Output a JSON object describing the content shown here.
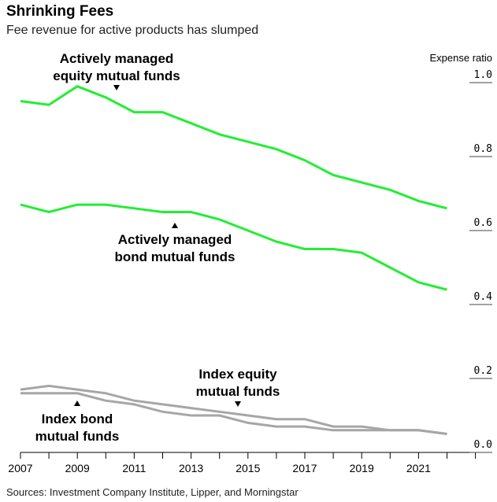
{
  "chart_data": {
    "type": "line",
    "title": "Shrinking Fees",
    "subtitle": "Fee revenue for active products has slumped",
    "ylabel": "Expense ratio",
    "ylim": [
      0,
      1.0
    ],
    "yticks": [
      "0.0",
      "0.2",
      "0.4",
      "0.6",
      "0.8",
      "1.0"
    ],
    "xlim": [
      2007,
      2023
    ],
    "xticks": [
      "2007",
      "2009",
      "2011",
      "2013",
      "2015",
      "2017",
      "2019",
      "2021"
    ],
    "x": [
      2007,
      2008,
      2009,
      2010,
      2011,
      2012,
      2013,
      2014,
      2015,
      2016,
      2017,
      2018,
      2019,
      2020,
      2021,
      2022
    ],
    "series": [
      {
        "name": "Actively managed equity mutual funds",
        "color": "#22ee33",
        "values": [
          0.95,
          0.94,
          0.99,
          0.96,
          0.92,
          0.92,
          0.89,
          0.86,
          0.84,
          0.82,
          0.79,
          0.75,
          0.73,
          0.71,
          0.68,
          0.66
        ]
      },
      {
        "name": "Actively managed bond mutual funds",
        "color": "#22ee33",
        "values": [
          0.67,
          0.65,
          0.67,
          0.67,
          0.66,
          0.65,
          0.65,
          0.63,
          0.6,
          0.57,
          0.55,
          0.55,
          0.54,
          0.5,
          0.46,
          0.44
        ]
      },
      {
        "name": "Index equity mutual funds",
        "color": "#a6a6a6",
        "values": [
          0.17,
          0.18,
          0.17,
          0.16,
          0.14,
          0.13,
          0.12,
          0.11,
          0.1,
          0.09,
          0.09,
          0.07,
          0.07,
          0.06,
          0.06,
          0.05
        ]
      },
      {
        "name": "Index bond mutual funds",
        "color": "#a6a6a6",
        "values": [
          0.16,
          0.16,
          0.16,
          0.14,
          0.13,
          0.11,
          0.1,
          0.1,
          0.08,
          0.07,
          0.07,
          0.06,
          0.06,
          0.06,
          0.06,
          0.05
        ]
      }
    ],
    "annotations": [
      {
        "lines": [
          "Actively managed",
          "equity mutual funds"
        ],
        "arrow": "down"
      },
      {
        "lines": [
          "Actively managed",
          "bond mutual funds"
        ],
        "arrow": "up"
      },
      {
        "lines": [
          "Index equity",
          "mutual funds"
        ],
        "arrow": "down"
      },
      {
        "lines": [
          "Index bond",
          "mutual funds"
        ],
        "arrow": "up"
      }
    ],
    "grid": false,
    "source": "Sources: Investment Company Institute, Lipper, and Morningstar"
  }
}
